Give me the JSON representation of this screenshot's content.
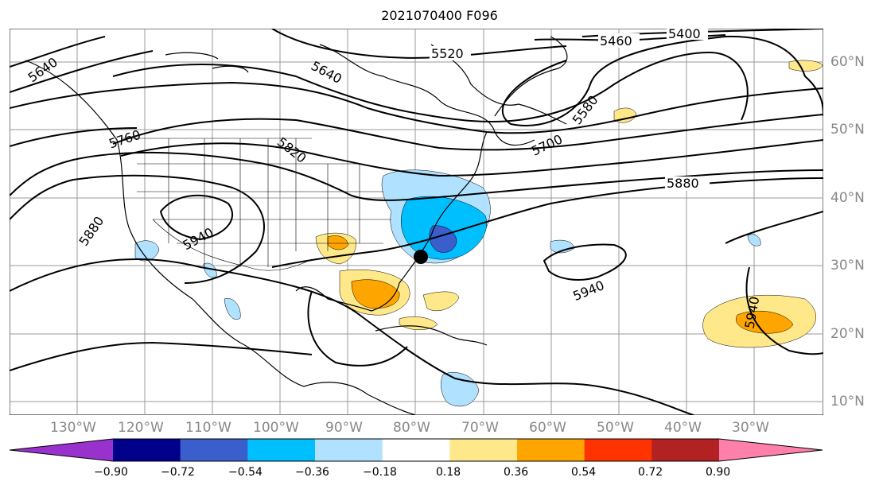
{
  "title": "2021070400 F096",
  "lon_labels": [
    "130°W",
    "120°W",
    "110°W",
    "100°W",
    "90°W",
    "80°W",
    "70°W",
    "60°W",
    "50°W",
    "40°W",
    "30°W"
  ],
  "lat_labels": [
    "60°N",
    "50°N",
    "40°N",
    "30°N",
    "20°N",
    "10°N"
  ],
  "contour_labels": [
    "5400",
    "5460",
    "5520",
    "5580",
    "5640",
    "5640",
    "5700",
    "5760",
    "5820",
    "5880",
    "5880",
    "5940",
    "5940",
    "5940"
  ],
  "colorbar": {
    "ticks": [
      "−0.90",
      "−0.72",
      "−0.54",
      "−0.36",
      "−0.18",
      "0.18",
      "0.36",
      "0.54",
      "0.72",
      "0.90"
    ],
    "colors": [
      "#9932cc",
      "#00008b",
      "#3a5fcd",
      "#00bfff",
      "#b0e2ff",
      "#ffffff",
      "#ffe88a",
      "#ffa500",
      "#ff3300",
      "#b22222",
      "#ff80aa"
    ]
  }
}
